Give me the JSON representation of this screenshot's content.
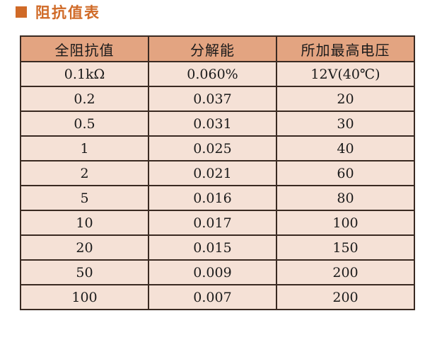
{
  "title": "阻抗值表",
  "colors": {
    "accent": "#d06a27",
    "header_bg": "#e3a481",
    "row_bg": "#f5e1d6",
    "border": "#3a2a22"
  },
  "table": {
    "headers": [
      "全阻抗值",
      "分解能",
      "所加最高电压"
    ],
    "rows": [
      [
        "0.1kΩ",
        "0.060%",
        "12V(40℃)"
      ],
      [
        "0.2",
        "0.037",
        "20"
      ],
      [
        "0.5",
        "0.031",
        "30"
      ],
      [
        "1",
        "0.025",
        "40"
      ],
      [
        "2",
        "0.021",
        "60"
      ],
      [
        "5",
        "0.016",
        "80"
      ],
      [
        "10",
        "0.017",
        "100"
      ],
      [
        "20",
        "0.015",
        "150"
      ],
      [
        "50",
        "0.009",
        "200"
      ],
      [
        "100",
        "0.007",
        "200"
      ]
    ]
  }
}
